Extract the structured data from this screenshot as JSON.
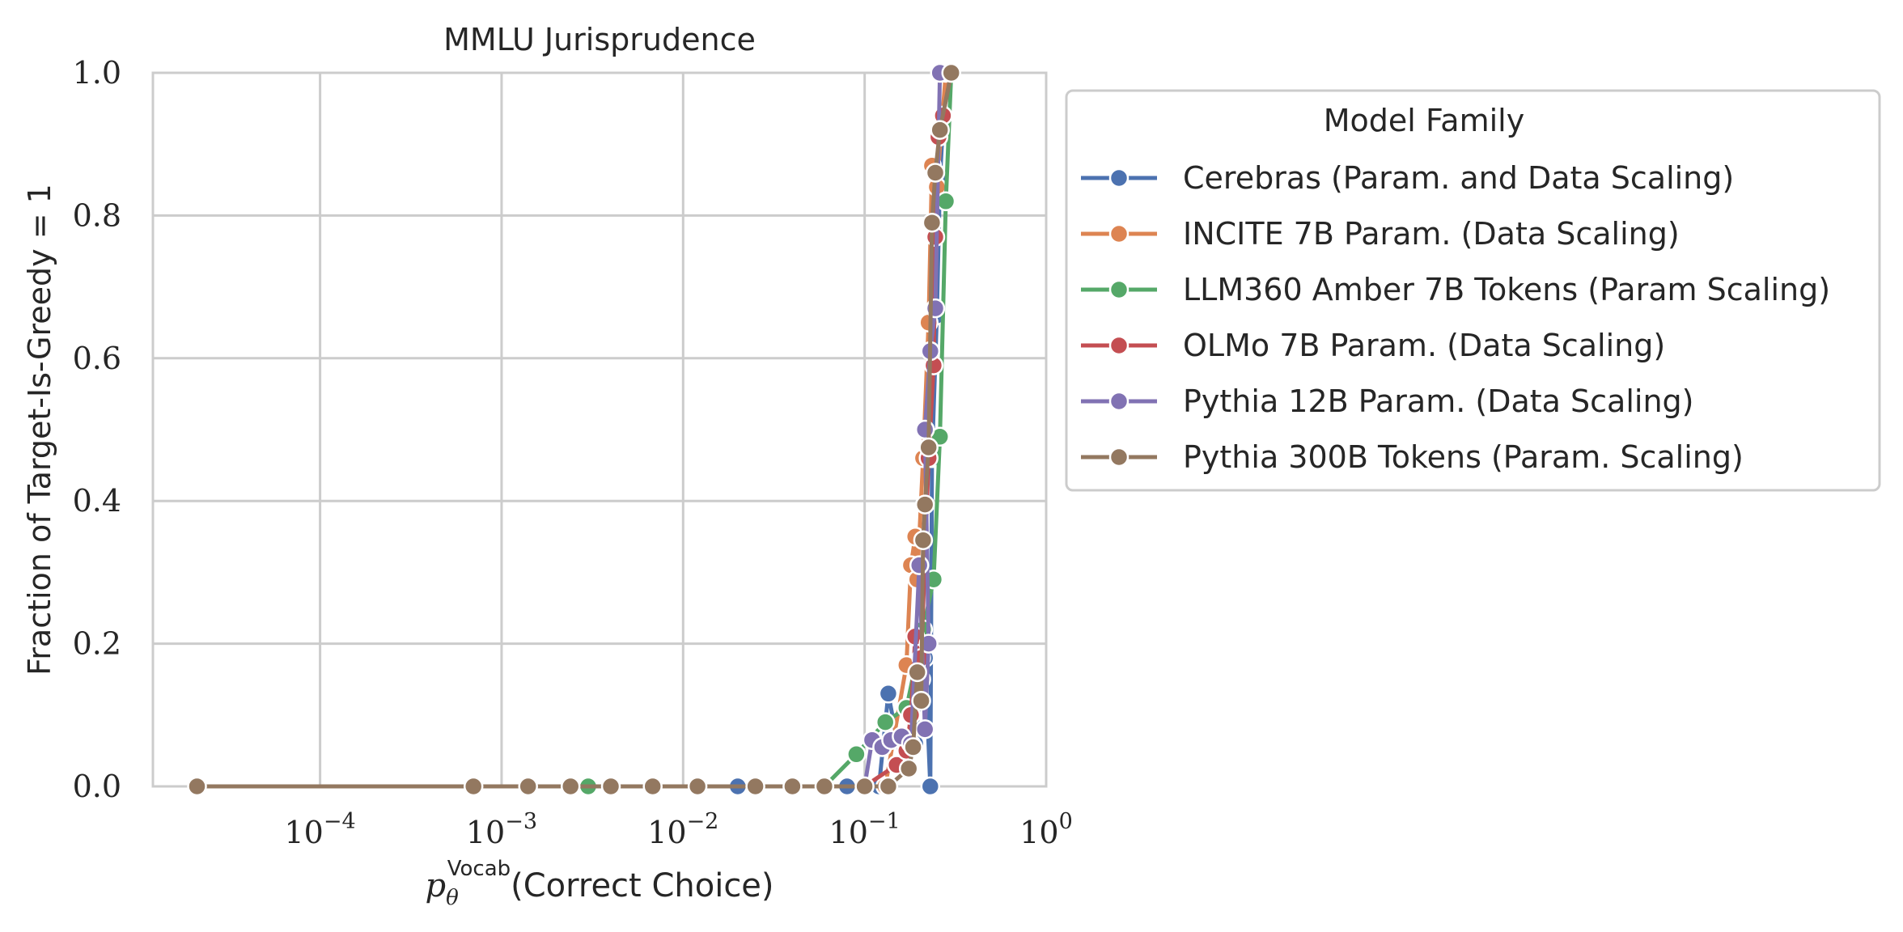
{
  "chart_data": {
    "type": "line",
    "title": "MMLU Jurisprudence",
    "xlabel": "Correct Choice",
    "xlabel_symbol": "p",
    "xlabel_subscript": "θ",
    "xlabel_superscript": "Vocab",
    "ylabel": "Fraction of Target-Is-Greedy = 1",
    "xscale": "log",
    "xlim": [
      1.2e-05,
      1.0
    ],
    "ylim": [
      0.0,
      1.0
    ],
    "x_ticks": [
      {
        "value": 0.0001,
        "base": "10",
        "exp": "−4"
      },
      {
        "value": 0.001,
        "base": "10",
        "exp": "−3"
      },
      {
        "value": 0.01,
        "base": "10",
        "exp": "−2"
      },
      {
        "value": 0.1,
        "base": "10",
        "exp": "−1"
      },
      {
        "value": 1.0,
        "base": "10",
        "exp": "0"
      }
    ],
    "y_ticks": [
      {
        "value": 0.0,
        "label": "0.0"
      },
      {
        "value": 0.2,
        "label": "0.2"
      },
      {
        "value": 0.4,
        "label": "0.4"
      },
      {
        "value": 0.6,
        "label": "0.6"
      },
      {
        "value": 0.8,
        "label": "0.8"
      },
      {
        "value": 1.0,
        "label": "1.0"
      }
    ],
    "grid": true,
    "legend": {
      "title": "Model Family",
      "placement": "outside-right"
    },
    "series": [
      {
        "name": "Cerebras (Param. and Data Scaling)",
        "color": "#4c72b0",
        "points": [
          [
            0.02,
            0.0
          ],
          [
            0.08,
            0.0
          ],
          [
            0.12,
            0.0
          ],
          [
            0.135,
            0.13
          ],
          [
            0.16,
            0.03
          ],
          [
            0.19,
            0.06
          ],
          [
            0.205,
            0.15
          ],
          [
            0.215,
            0.18
          ],
          [
            0.23,
            0.0
          ],
          [
            0.235,
            0.46
          ],
          [
            0.25,
            0.66
          ],
          [
            0.26,
            0.85
          ],
          [
            0.28,
            1.0
          ]
        ]
      },
      {
        "name": "INCITE 7B Param. (Data Scaling)",
        "color": "#dd8452",
        "points": [
          [
            0.1,
            0.0
          ],
          [
            0.13,
            0.0
          ],
          [
            0.17,
            0.17
          ],
          [
            0.18,
            0.31
          ],
          [
            0.19,
            0.35
          ],
          [
            0.195,
            0.29
          ],
          [
            0.21,
            0.46
          ],
          [
            0.225,
            0.65
          ],
          [
            0.235,
            0.87
          ],
          [
            0.25,
            0.84
          ],
          [
            0.28,
            1.0
          ]
        ]
      },
      {
        "name": "LLM360 Amber 7B Tokens (Param Scaling)",
        "color": "#55a868",
        "points": [
          [
            0.003,
            0.0
          ],
          [
            0.06,
            0.0
          ],
          [
            0.09,
            0.045
          ],
          [
            0.13,
            0.09
          ],
          [
            0.17,
            0.11
          ],
          [
            0.21,
            0.22
          ],
          [
            0.24,
            0.29
          ],
          [
            0.26,
            0.49
          ],
          [
            0.28,
            0.82
          ],
          [
            0.3,
            1.0
          ]
        ]
      },
      {
        "name": "OLMo 7B Param. (Data Scaling)",
        "color": "#c44e52",
        "points": [
          [
            0.1,
            0.0
          ],
          [
            0.15,
            0.03
          ],
          [
            0.17,
            0.05
          ],
          [
            0.18,
            0.1
          ],
          [
            0.19,
            0.21
          ],
          [
            0.205,
            0.18
          ],
          [
            0.225,
            0.46
          ],
          [
            0.24,
            0.59
          ],
          [
            0.245,
            0.77
          ],
          [
            0.255,
            0.91
          ],
          [
            0.27,
            0.94
          ],
          [
            0.3,
            1.0
          ]
        ]
      },
      {
        "name": "Pythia 12B Param. (Data Scaling)",
        "color": "#8172b3",
        "points": [
          [
            0.1,
            0.0
          ],
          [
            0.11,
            0.065
          ],
          [
            0.125,
            0.055
          ],
          [
            0.14,
            0.065
          ],
          [
            0.16,
            0.07
          ],
          [
            0.18,
            0.06
          ],
          [
            0.2,
            0.31
          ],
          [
            0.215,
            0.08
          ],
          [
            0.225,
            0.2
          ],
          [
            0.215,
            0.5
          ],
          [
            0.23,
            0.61
          ],
          [
            0.245,
            0.67
          ],
          [
            0.26,
            1.0
          ]
        ]
      },
      {
        "name": "Pythia 300B Tokens (Param. Scaling)",
        "color": "#937860",
        "points": [
          [
            2.1e-05,
            0.0
          ],
          [
            0.0007,
            0.0
          ],
          [
            0.0014,
            0.0
          ],
          [
            0.0024,
            0.0
          ],
          [
            0.004,
            0.0
          ],
          [
            0.0068,
            0.0
          ],
          [
            0.012,
            0.0
          ],
          [
            0.025,
            0.0
          ],
          [
            0.04,
            0.0
          ],
          [
            0.06,
            0.0
          ],
          [
            0.1,
            0.0
          ],
          [
            0.135,
            0.0
          ],
          [
            0.175,
            0.025
          ],
          [
            0.185,
            0.055
          ],
          [
            0.195,
            0.16
          ],
          [
            0.205,
            0.12
          ],
          [
            0.21,
            0.345
          ],
          [
            0.215,
            0.395
          ],
          [
            0.225,
            0.475
          ],
          [
            0.235,
            0.79
          ],
          [
            0.245,
            0.86
          ],
          [
            0.26,
            0.92
          ],
          [
            0.3,
            1.0
          ]
        ]
      }
    ]
  }
}
